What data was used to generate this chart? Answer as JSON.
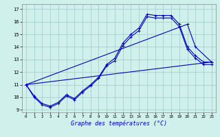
{
  "title": "Graphe des températures (°C)",
  "bg_color": "#cff0eb",
  "grid_color": "#aad4ce",
  "line_color": "#0000bb",
  "xlim": [
    -0.5,
    23.5
  ],
  "ylim": [
    8.8,
    17.4
  ],
  "yticks": [
    9,
    10,
    11,
    12,
    13,
    14,
    15,
    16,
    17
  ],
  "xticks": [
    0,
    1,
    2,
    3,
    4,
    5,
    6,
    7,
    8,
    9,
    10,
    11,
    12,
    13,
    14,
    15,
    16,
    17,
    18,
    19,
    20,
    21,
    22,
    23
  ],
  "line1_x": [
    0,
    1,
    2,
    3,
    4,
    5,
    6,
    7,
    8,
    9,
    10,
    11,
    12,
    13,
    14,
    15,
    16,
    17,
    18,
    19,
    20,
    21,
    22,
    23
  ],
  "line1_y": [
    11.0,
    10.1,
    9.5,
    9.3,
    9.6,
    10.2,
    9.9,
    10.5,
    11.0,
    11.6,
    12.6,
    13.1,
    14.3,
    15.0,
    15.5,
    16.6,
    16.5,
    16.5,
    16.5,
    15.8,
    14.0,
    13.3,
    12.8,
    12.8
  ],
  "line2_x": [
    0,
    1,
    2,
    3,
    4,
    5,
    6,
    7,
    8,
    9,
    10,
    11,
    12,
    13,
    14,
    15,
    16,
    17,
    18,
    19,
    20,
    21,
    22,
    23
  ],
  "line2_y": [
    11.0,
    10.0,
    9.4,
    9.2,
    9.5,
    10.1,
    9.8,
    10.4,
    10.9,
    11.5,
    12.5,
    12.9,
    14.1,
    14.8,
    15.3,
    16.4,
    16.3,
    16.3,
    16.3,
    15.6,
    13.8,
    13.1,
    12.6,
    12.6
  ],
  "line3_x": [
    0,
    23
  ],
  "line3_y": [
    11.0,
    12.8
  ],
  "line4_x": [
    0,
    20,
    21,
    23
  ],
  "line4_y": [
    11.0,
    15.8,
    14.0,
    12.8
  ]
}
